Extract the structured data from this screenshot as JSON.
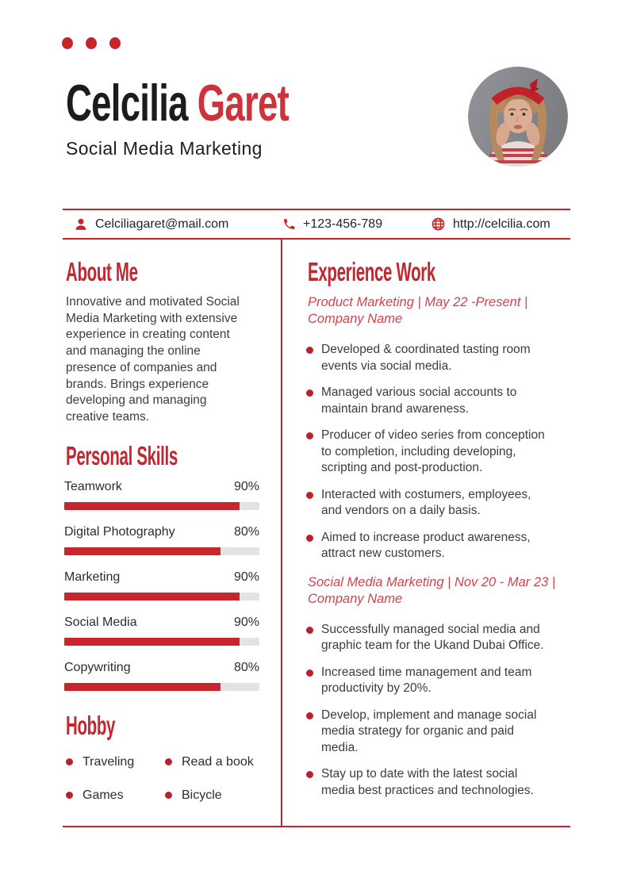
{
  "colors": {
    "accent": "#c5232d",
    "name_red": "#ce333c",
    "job_title_red": "#d4424d",
    "bar_fill": "#c9252d",
    "bar_track": "#e3e3e3",
    "bullet_dot": "#b8222a",
    "icon_red": "#c8232b",
    "text_dark": "#1c1c1c",
    "text_body": "#3d3d3d"
  },
  "header": {
    "first_name": "Celcilia ",
    "last_name": "Garet",
    "subtitle": "Social Media Marketing",
    "decoration": "three-red-dots",
    "photo": "portrait-woman-red-headband"
  },
  "contact": {
    "email": "Celciliagaret@mail.com",
    "email_icon": "person-icon",
    "phone": "+123-456-789",
    "phone_icon": "phone-icon",
    "website": "http://celcilia.com",
    "website_icon": "globe-icon"
  },
  "about": {
    "title": "About Me",
    "lines": [
      "Innovative and motivated Social",
      "Media Marketing with extensive",
      "experience in creating content",
      "and managing the online",
      "presence of companies and",
      "brands. Brings experience",
      "developing and managing",
      "creative teams."
    ]
  },
  "skills": {
    "title": "Personal Skills",
    "items": [
      {
        "label": "Teamwork",
        "pct_label": "90%",
        "pct": 90
      },
      {
        "label": "Digital Photography",
        "pct_label": "80%",
        "pct": 80
      },
      {
        "label": "Marketing",
        "pct_label": "90%",
        "pct": 90
      },
      {
        "label": "Social Media",
        "pct_label": "90%",
        "pct": 90
      },
      {
        "label": "Copywriting",
        "pct_label": "80%",
        "pct": 80
      }
    ]
  },
  "hobby": {
    "title": "Hobby",
    "items": [
      "Traveling",
      "Read a book",
      "Games",
      "Bicycle"
    ]
  },
  "experience": {
    "title": "Experience Work",
    "jobs": [
      {
        "heading_lines": [
          "Product Marketing | May 22 -Present |",
          "Company Name"
        ],
        "bullets": [
          [
            "Developed & coordinated tasting room",
            "events via social media."
          ],
          [
            "Managed various social accounts to",
            "maintain brand awareness."
          ],
          [
            "Producer of video series from conception",
            "to completion, including developing,",
            "scripting and post-production."
          ],
          [
            "Interacted with costumers, employees,",
            "and vendors on a daily basis."
          ],
          [
            "Aimed to increase product awareness,",
            "attract new customers."
          ]
        ]
      },
      {
        "heading_lines": [
          "Social Media Marketing | Nov 20 - Mar 23 |",
          "Company Name"
        ],
        "bullets": [
          [
            "Successfully managed social media and",
            "graphic team for the Ukand Dubai Office."
          ],
          [
            "Increased time management and team",
            "productivity by 20%."
          ],
          [
            "Develop, implement and manage social",
            "media strategy for organic and paid",
            "media."
          ],
          [
            "Stay up to date with the latest social",
            "media best practices and technologies."
          ]
        ]
      }
    ]
  }
}
